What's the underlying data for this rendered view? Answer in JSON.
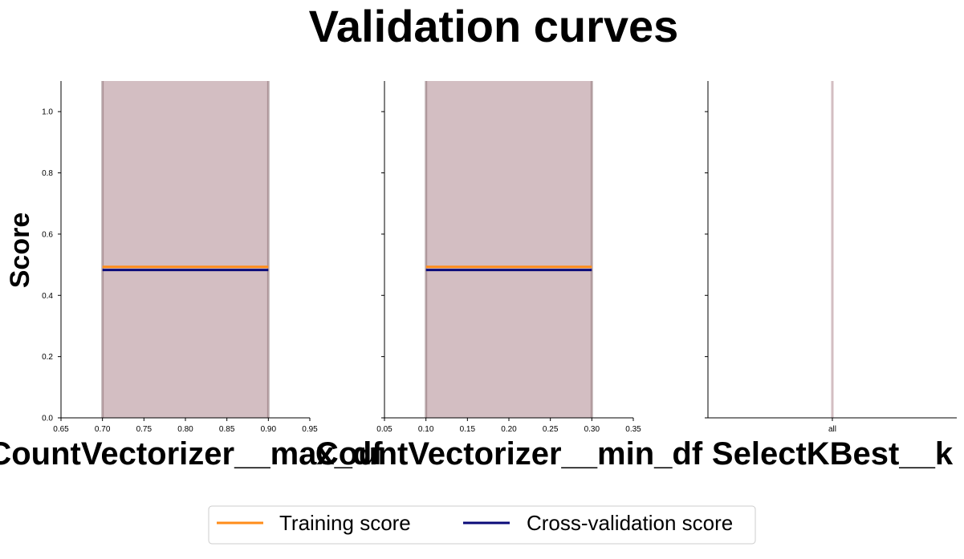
{
  "title": "Validation curves",
  "colors": {
    "training": "#ff8c1a",
    "cross_validation": "#0a0a78",
    "band": "#9c6d73",
    "band_edge": "#7a5c60"
  },
  "legend": {
    "placement": "bottom-center",
    "entries": [
      "Training score",
      "Cross-validation score"
    ]
  },
  "chart_data": [
    {
      "type": "line",
      "xlabel": "CountVectorizer__max_df",
      "ylabel": "Score",
      "xlim": [
        0.65,
        0.95
      ],
      "ylim": [
        0.0,
        1.1
      ],
      "x_ticks": [
        "0.65",
        "0.70",
        "0.75",
        "0.80",
        "0.85",
        "0.90",
        "0.95"
      ],
      "y_ticks": [
        "0.0",
        "0.2",
        "0.4",
        "0.6",
        "0.8",
        "1.0"
      ],
      "x": [
        0.7,
        0.9
      ],
      "series": [
        {
          "name": "Training score",
          "values": [
            0.493,
            0.493
          ],
          "band": [
            0.0,
            1.1
          ]
        },
        {
          "name": "Cross-validation score",
          "values": [
            0.483,
            0.483
          ],
          "band": [
            0.0,
            1.1
          ]
        }
      ]
    },
    {
      "type": "line",
      "xlabel": "CountVectorizer__min_df",
      "ylabel": "",
      "xlim": [
        0.05,
        0.35
      ],
      "ylim": [
        0.0,
        1.1
      ],
      "x_ticks": [
        "0.05",
        "0.10",
        "0.15",
        "0.20",
        "0.25",
        "0.30",
        "0.35"
      ],
      "y_ticks": [
        "0.0",
        "0.2",
        "0.4",
        "0.6",
        "0.8",
        "1.0"
      ],
      "x": [
        0.1,
        0.3
      ],
      "series": [
        {
          "name": "Training score",
          "values": [
            0.493,
            0.493
          ],
          "band": [
            0.0,
            1.1
          ]
        },
        {
          "name": "Cross-validation score",
          "values": [
            0.483,
            0.483
          ],
          "band": [
            0.0,
            1.1
          ]
        }
      ]
    },
    {
      "type": "line",
      "xlabel": "SelectKBest__k",
      "ylabel": "",
      "ylim": [
        0.0,
        1.1
      ],
      "x_ticks": [
        "all"
      ],
      "y_ticks": [
        "0.0",
        "0.2",
        "0.4",
        "0.6",
        "0.8",
        "1.0"
      ],
      "categories": [
        "all"
      ],
      "series": [
        {
          "name": "Training score",
          "values": [
            0.493
          ],
          "band": [
            0.0,
            1.1
          ]
        },
        {
          "name": "Cross-validation score",
          "values": [
            0.483
          ],
          "band": [
            0.0,
            1.1
          ]
        }
      ]
    }
  ]
}
